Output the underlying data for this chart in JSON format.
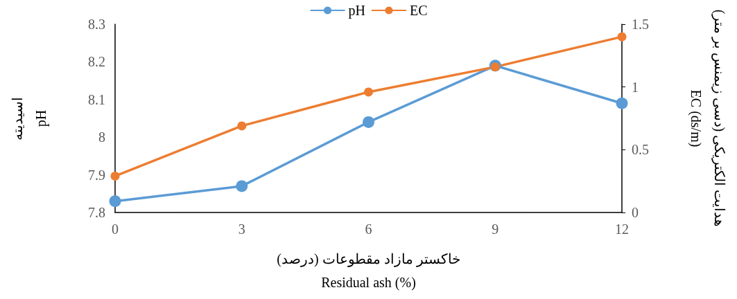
{
  "chart_data": {
    "type": "line",
    "xlabel": "خاکستر مازاد مقطوعات (درصد)\nResidual ash (%)",
    "ylabel": "اسیدیته\npH",
    "y2label": "هدایت الکتریکی (دسی زیمنس بر متر)\nEC (ds/m)",
    "x": [
      0,
      3,
      6,
      9,
      12
    ],
    "xlim": [
      0,
      12
    ],
    "xticks": [
      0,
      3,
      6,
      9,
      12
    ],
    "ylim": [
      7.8,
      8.3
    ],
    "yticks": [
      7.8,
      7.9,
      8,
      8.1,
      8.2,
      8.3
    ],
    "y2lim": [
      0,
      1.5
    ],
    "y2ticks": [
      0,
      0.5,
      1,
      1.5
    ],
    "series": [
      {
        "name": "pH",
        "color": "#5b9bd5",
        "values": [
          7.83,
          7.87,
          8.04,
          8.19,
          8.09
        ]
      },
      {
        "name": "EC",
        "color": "#ed7d31",
        "values": [
          0.29,
          0.69,
          0.96,
          1.16,
          1.4
        ],
        "axis": "y2"
      }
    ],
    "legend": "top",
    "grid": false,
    "marker": "circle",
    "line_style": "solid"
  }
}
